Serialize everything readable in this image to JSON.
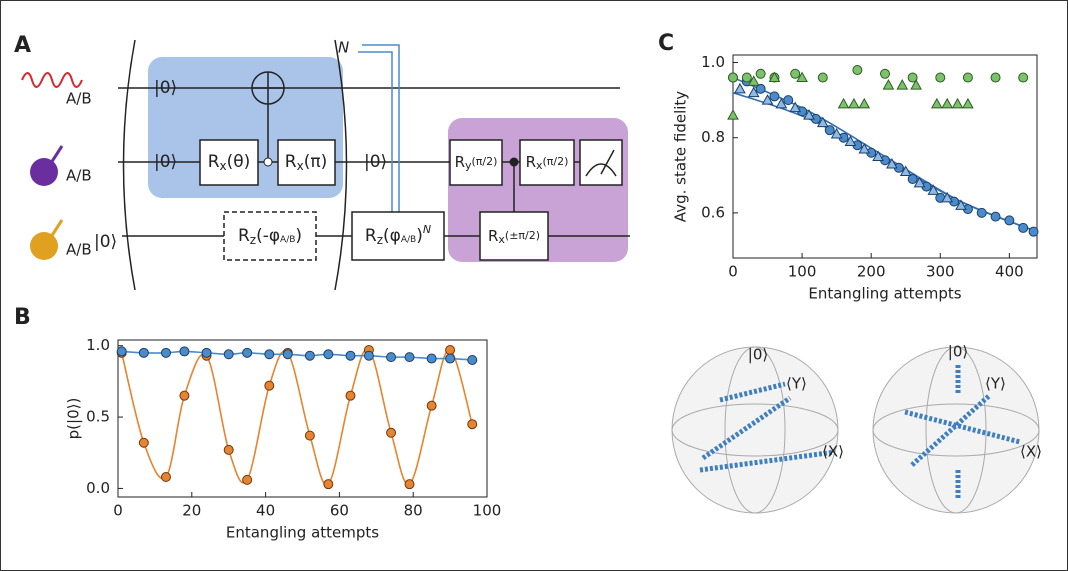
{
  "panel_labels": [
    "A",
    "B",
    "C"
  ],
  "circuit": {
    "inputs": [
      "A/B",
      "A/B",
      "A/B"
    ],
    "kets": [
      "|0⟩",
      "|0⟩",
      "|0⟩",
      "|0⟩"
    ],
    "repeat": "N",
    "gates": [
      {
        "op": "R",
        "axis": "x",
        "arg": "(θ)"
      },
      {
        "op": "R",
        "axis": "x",
        "arg": "(π)"
      },
      {
        "op": "R",
        "axis": "z",
        "arg": "(-φ",
        "arg_sub": "A/B",
        "tail": ")"
      },
      {
        "op": "R",
        "axis": "z",
        "arg": "(φ",
        "arg_sub": "A/B",
        "tail": ")",
        "power": "N"
      },
      {
        "op": "R",
        "axis": "y",
        "arg": "(π/2)"
      },
      {
        "op": "R",
        "axis": "x",
        "arg": "(π/2)"
      },
      {
        "op": "R",
        "axis": "x",
        "arg": "(±π/2)"
      }
    ]
  },
  "chart_data": [
    {
      "type": "scatter",
      "xlabel": "Entangling attempts",
      "ylabel": "p(|0⟩)",
      "xlim": [
        0,
        100
      ],
      "ylim": [
        -0.06,
        1.04
      ],
      "xticks": [
        0,
        20,
        40,
        60,
        80,
        100
      ],
      "yticks": [
        {
          "value": 0,
          "label": "0.0"
        },
        0.5,
        {
          "value": 1,
          "label": "1.0"
        }
      ],
      "series": [
        {
          "color": "#e8832f",
          "edgecolor": "#6b3a10",
          "marker": "circle",
          "line": true,
          "x": [
            1,
            7,
            13,
            18,
            24,
            30,
            35,
            41,
            46,
            52,
            57,
            63,
            68,
            74,
            79,
            85,
            90,
            96
          ],
          "values": [
            0.95,
            0.32,
            0.08,
            0.65,
            0.93,
            0.27,
            0.06,
            0.72,
            0.95,
            0.37,
            0.03,
            0.65,
            0.97,
            0.39,
            0.03,
            0.58,
            0.97,
            0.45
          ]
        },
        {
          "color": "#4a8ccb",
          "edgecolor": "#1d3f66",
          "marker": "circle",
          "line": true,
          "x": [
            1,
            7,
            13,
            18,
            24,
            30,
            35,
            41,
            46,
            52,
            57,
            63,
            68,
            74,
            79,
            85,
            90,
            96
          ],
          "values": [
            0.96,
            0.95,
            0.95,
            0.96,
            0.95,
            0.94,
            0.95,
            0.94,
            0.94,
            0.93,
            0.94,
            0.93,
            0.93,
            0.92,
            0.92,
            0.91,
            0.91,
            0.9
          ]
        }
      ]
    },
    {
      "type": "scatter",
      "xlabel": "Entangling attempts",
      "ylabel": "Avg. state fidelity",
      "xlim": [
        0,
        440
      ],
      "ylim": [
        0.48,
        1.02
      ],
      "xticks": [
        0,
        100,
        200,
        300,
        400
      ],
      "yticks": [
        0.6,
        0.8,
        {
          "value": 1,
          "label": "1.0"
        }
      ],
      "series": [
        {
          "color": "#2f6eb5",
          "marker": "none",
          "line": true,
          "x": [
            0,
            110,
            220,
            330,
            440
          ],
          "values": [
            0.96,
            0.87,
            0.75,
            0.63,
            0.55
          ]
        },
        {
          "color": "#2f6eb5",
          "marker": "none",
          "line": true,
          "x": [
            0,
            110,
            220,
            330,
            440
          ],
          "values": [
            0.92,
            0.85,
            0.74,
            0.63,
            0.55
          ]
        },
        {
          "color": "#4a8ccb",
          "edgecolor": "#1d3f66",
          "marker": "circle",
          "x": [
            0,
            20,
            40,
            60,
            80,
            100,
            120,
            140,
            160,
            180,
            200,
            220,
            240,
            260,
            280,
            300,
            320,
            340,
            360,
            380,
            400,
            420,
            435
          ],
          "values": [
            0.96,
            0.95,
            0.93,
            0.91,
            0.9,
            0.87,
            0.85,
            0.82,
            0.8,
            0.78,
            0.76,
            0.74,
            0.72,
            0.69,
            0.67,
            0.64,
            0.63,
            0.61,
            0.6,
            0.59,
            0.58,
            0.56,
            0.55
          ]
        },
        {
          "color": "#8cbbe6",
          "edgecolor": "#1d3f66",
          "marker": "triangle",
          "x": [
            10,
            30,
            50,
            70,
            90,
            110,
            130,
            150,
            170,
            190,
            210,
            230,
            250,
            270,
            290,
            310,
            330
          ],
          "values": [
            0.93,
            0.92,
            0.9,
            0.89,
            0.88,
            0.86,
            0.84,
            0.81,
            0.79,
            0.77,
            0.75,
            0.73,
            0.71,
            0.68,
            0.66,
            0.64,
            0.62
          ]
        },
        {
          "color": "#7cc26a",
          "edgecolor": "#2d5e24",
          "marker": "circle",
          "x": [
            0,
            20,
            40,
            60,
            90,
            130,
            180,
            220,
            260,
            300,
            340,
            380,
            420
          ],
          "values": [
            0.96,
            0.96,
            0.97,
            0.96,
            0.97,
            0.96,
            0.98,
            0.97,
            0.96,
            0.96,
            0.96,
            0.96,
            0.96
          ]
        },
        {
          "color": "#7cc26a",
          "edgecolor": "#2d5e24",
          "marker": "triangle",
          "x": [
            0,
            30,
            60,
            100,
            160,
            175,
            190,
            225,
            245,
            265,
            295,
            310,
            325,
            340
          ],
          "values": [
            0.86,
            0.95,
            0.96,
            0.96,
            0.89,
            0.89,
            0.89,
            0.94,
            0.94,
            0.94,
            0.89,
            0.89,
            0.89,
            0.89
          ]
        }
      ]
    }
  ],
  "bloch": {
    "labels": [
      [
        "|0⟩",
        "⟨Y⟩",
        "⟨X⟩"
      ],
      [
        "|0⟩",
        "⟨Y⟩",
        "⟨X⟩"
      ]
    ]
  }
}
